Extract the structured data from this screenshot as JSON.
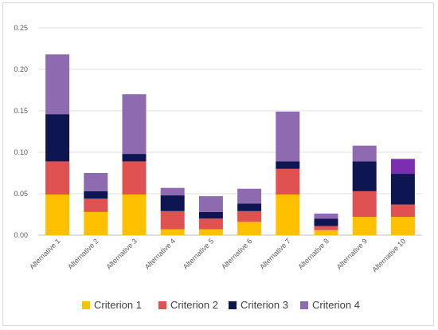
{
  "chart_data": {
    "type": "bar",
    "stacked": true,
    "categories": [
      "Alternative 1",
      "Alternative 2",
      "Alternative 3",
      "Alternative 4",
      "Alternative 5",
      "Alternative 6",
      "Alternative 7",
      "Alternative 8",
      "Alternative 9",
      "Alternative 10"
    ],
    "series": [
      {
        "name": "Criterion 1",
        "color": "#FFC000",
        "values": [
          0.049,
          0.028,
          0.049,
          0.007,
          0.007,
          0.016,
          0.049,
          0.006,
          0.022,
          0.022
        ]
      },
      {
        "name": "Criterion 2",
        "color": "#E05252",
        "values": [
          0.04,
          0.016,
          0.04,
          0.022,
          0.013,
          0.013,
          0.031,
          0.005,
          0.031,
          0.015
        ]
      },
      {
        "name": "Criterion 3",
        "color": "#0D1650",
        "values": [
          0.057,
          0.009,
          0.009,
          0.019,
          0.008,
          0.009,
          0.009,
          0.009,
          0.036,
          0.037
        ]
      },
      {
        "name": "Criterion 4",
        "color": "#8E6AB0",
        "values": [
          0.072,
          0.022,
          0.072,
          0.009,
          0.019,
          0.018,
          0.06,
          0.006,
          0.019,
          0.018
        ]
      }
    ],
    "highlight": {
      "category_index": 9,
      "series_index": 3,
      "color": "#7B2FB0"
    },
    "ylim": [
      0,
      0.25
    ],
    "yticks": [
      "0.00",
      "0.05",
      "0.10",
      "0.15",
      "0.20",
      "0.25"
    ],
    "grid": true,
    "legend_position": "bottom",
    "title": "",
    "xlabel": "",
    "ylabel": ""
  }
}
